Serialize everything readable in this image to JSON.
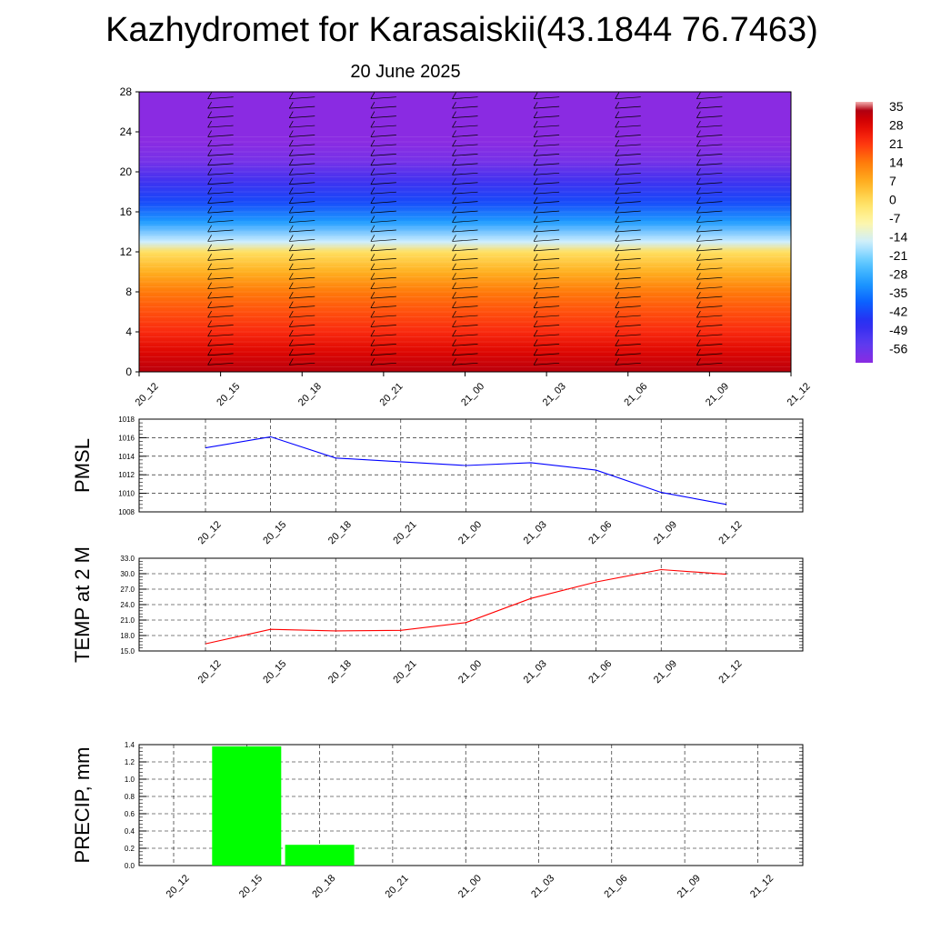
{
  "title": "Kazhydromet for Karasaiskii(43.1844 76.7463)",
  "subtitle": "20 June 2025",
  "chart_data": [
    {
      "type": "heatmap",
      "name": "temperature-height",
      "x_ticks": [
        "20_12",
        "20_15",
        "20_18",
        "20_21",
        "21_00",
        "21_03",
        "21_06",
        "21_09",
        "21_12"
      ],
      "y_ticks": [
        0,
        4,
        8,
        12,
        16,
        20,
        24,
        28
      ],
      "ylim": [
        0,
        28
      ],
      "colorbar_labels": [
        "35",
        "28",
        "21",
        "14",
        "7",
        "0",
        "-7",
        "-14",
        "-21",
        "-28",
        "-35",
        "-42",
        "-49",
        "-56"
      ],
      "profile": [
        {
          "level": 0,
          "value": 31
        },
        {
          "level": 2,
          "value": 27
        },
        {
          "level": 4,
          "value": 22
        },
        {
          "level": 6,
          "value": 18
        },
        {
          "level": 8,
          "value": 14
        },
        {
          "level": 10,
          "value": 7
        },
        {
          "level": 12,
          "value": 0
        },
        {
          "level": 13,
          "value": -14
        },
        {
          "level": 15,
          "value": -28
        },
        {
          "level": 17,
          "value": -38
        },
        {
          "level": 19,
          "value": -45
        },
        {
          "level": 21,
          "value": -53
        },
        {
          "level": 23,
          "value": -56
        },
        {
          "level": 28,
          "value": -56
        }
      ],
      "colors": {
        "warm_max": "#8b0000",
        "cold_min": "#8a2be2"
      }
    },
    {
      "type": "line",
      "ylabel": "PMSL",
      "categories": [
        "20_12",
        "20_15",
        "20_18",
        "20_21",
        "21_00",
        "21_03",
        "21_06",
        "21_09",
        "21_12"
      ],
      "values": [
        1014.9,
        1016.1,
        1013.8,
        1013.4,
        1013.0,
        1013.3,
        1012.5,
        1010.1,
        1008.8
      ],
      "y_ticks": [
        "1008",
        "1010",
        "1012",
        "1014",
        "1016",
        "1018"
      ],
      "ylim": [
        1008,
        1018
      ],
      "color": "#0000ff"
    },
    {
      "type": "line",
      "ylabel": "TEMP at 2 M",
      "categories": [
        "20_12",
        "20_15",
        "20_18",
        "20_21",
        "21_00",
        "21_03",
        "21_06",
        "21_09",
        "21_12"
      ],
      "values": [
        16.4,
        19.2,
        18.9,
        19.0,
        20.5,
        25.2,
        28.4,
        30.8,
        29.9
      ],
      "y_ticks": [
        "15.0",
        "18.0",
        "21.0",
        "24.0",
        "27.0",
        "30.0",
        "33.0"
      ],
      "ylim": [
        15,
        33
      ],
      "color": "#ff0000"
    },
    {
      "type": "bar",
      "ylabel": "PRECIP, mm",
      "categories": [
        "20_12",
        "20_15",
        "20_18",
        "20_21",
        "21_00",
        "21_03",
        "21_06",
        "21_09",
        "21_12"
      ],
      "values": [
        0,
        1.38,
        0.24,
        0,
        0,
        0,
        0,
        0,
        0
      ],
      "y_ticks": [
        "0.0",
        "0.2",
        "0.4",
        "0.6",
        "0.8",
        "1.0",
        "1.2",
        "1.4"
      ],
      "ylim": [
        0,
        1.4
      ],
      "color": "#00ff00"
    }
  ]
}
